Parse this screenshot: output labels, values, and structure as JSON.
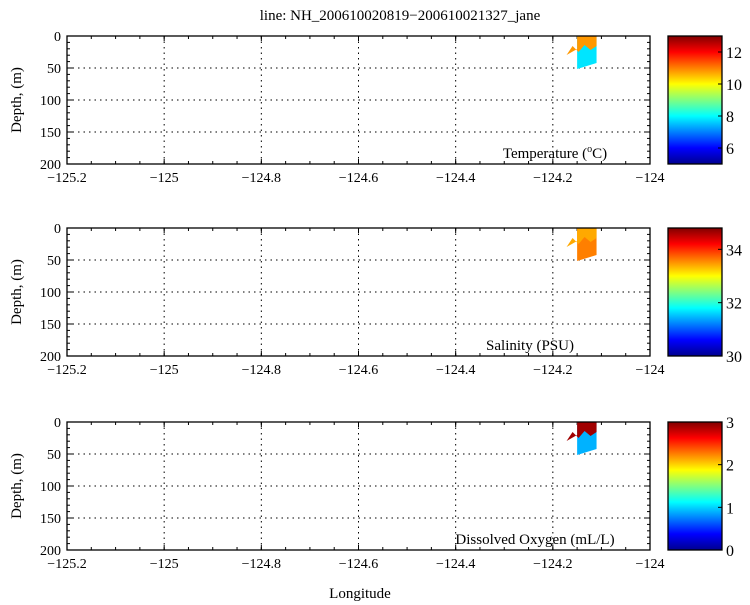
{
  "chart_data": [
    {
      "type": "heatmap",
      "label": "Temperature (°C)",
      "label_main": "Temperature (",
      "label_sup": "o",
      "label_unit": "C)",
      "ylabel": "Depth, (m)",
      "xlim": [
        -125.2,
        -124
      ],
      "ylim": [
        200,
        0
      ],
      "xticks": [
        "-125.2",
        "-125",
        "-124.8",
        "-124.6",
        "-124.4",
        "-124.2",
        "-124"
      ],
      "yticks": [
        "0",
        "50",
        "100",
        "150",
        "200"
      ],
      "clim": [
        5,
        13
      ],
      "cticks": [
        "6",
        "8",
        "10",
        "12"
      ],
      "cvals": [
        6,
        8,
        10,
        12
      ],
      "patch": {
        "lon": [
          -124.15,
          -124.11
        ],
        "depth_max": 50,
        "surface_value": 10.8,
        "deep_value": 7.8
      }
    },
    {
      "type": "heatmap",
      "label": "Salinity (PSU)",
      "ylabel": "Depth, (m)",
      "xlim": [
        -125.2,
        -124
      ],
      "ylim": [
        200,
        0
      ],
      "xticks": [
        "-125.2",
        "-125",
        "-124.8",
        "-124.6",
        "-124.4",
        "-124.2",
        "-124"
      ],
      "yticks": [
        "0",
        "50",
        "100",
        "150",
        "200"
      ],
      "clim": [
        30,
        34.8
      ],
      "cticks": [
        "30",
        "32",
        "34"
      ],
      "cvals": [
        30,
        32,
        34
      ],
      "patch": {
        "lon": [
          -124.15,
          -124.11
        ],
        "depth_max": 50,
        "surface_value": 33.4,
        "deep_value": 33.6
      }
    },
    {
      "type": "heatmap",
      "label": "Dissolved Oxygen (mL/L)",
      "ylabel": "Depth, (m)",
      "xlabel": "Longitude",
      "xlim": [
        -125.2,
        -124
      ],
      "ylim": [
        200,
        0
      ],
      "xticks": [
        "-125.2",
        "-125",
        "-124.8",
        "-124.6",
        "-124.4",
        "-124.2",
        "-124"
      ],
      "yticks": [
        "0",
        "50",
        "100",
        "150",
        "200"
      ],
      "clim": [
        0,
        3
      ],
      "cticks": [
        "0",
        "1",
        "2",
        "3"
      ],
      "cvals": [
        0,
        1,
        2,
        3
      ],
      "patch": {
        "lon": [
          -124.15,
          -124.11
        ],
        "depth_max": 50,
        "surface_value": 2.9,
        "deep_value": 0.9
      }
    }
  ],
  "title": "line: NH_200610020819−200610021327_jane",
  "xlabel": "Longitude"
}
